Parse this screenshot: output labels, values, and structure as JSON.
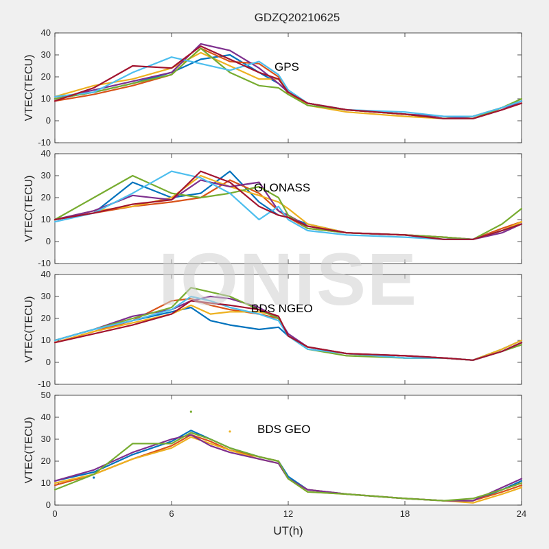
{
  "watermark": "IONISE",
  "chart_data": [
    {
      "type": "line",
      "title": "GDZQ20210625",
      "annotation": "GPS",
      "xlabel": "",
      "ylabel": "VTEC(TECU)",
      "xlim": [
        0,
        24
      ],
      "ylim": [
        -10,
        40
      ],
      "xticks": [
        0,
        6,
        12,
        18,
        24
      ],
      "xtick_labels": [
        "",
        "",
        "",
        "",
        ""
      ],
      "yticks": [
        -10,
        0,
        10,
        20,
        30,
        40
      ],
      "grid": false,
      "series": [
        {
          "color": "#0072BD",
          "x": [
            0,
            2,
            4,
            6,
            7.5,
            9,
            10.5,
            11.5,
            12,
            13,
            15,
            18,
            20,
            21.5,
            23,
            24
          ],
          "y": [
            10,
            13,
            17,
            22,
            28,
            30,
            22,
            17,
            13,
            8,
            5,
            3,
            1,
            2,
            6,
            9
          ]
        },
        {
          "color": "#D95319",
          "x": [
            0,
            2,
            4,
            6,
            7.5,
            9,
            10.5,
            11.5,
            12,
            13,
            15,
            18,
            20,
            21.5,
            23,
            24
          ],
          "y": [
            9,
            12,
            16,
            21,
            33,
            27,
            26,
            20,
            12,
            8,
            5,
            3,
            1,
            1,
            5,
            8
          ]
        },
        {
          "color": "#EDB120",
          "x": [
            0,
            2,
            4,
            6,
            7.5,
            9,
            10.5,
            11.5,
            12,
            13,
            15,
            18,
            20,
            21.5,
            23,
            24
          ],
          "y": [
            11,
            16,
            19,
            24,
            31,
            25,
            19,
            19,
            14,
            7,
            4,
            2,
            1,
            2,
            6,
            9
          ]
        },
        {
          "color": "#7E2F8E",
          "x": [
            0,
            2,
            4,
            6,
            7.5,
            9,
            10.5,
            11.5,
            12,
            13,
            15,
            18,
            20,
            21.5,
            23,
            24
          ],
          "y": [
            10,
            14,
            18,
            22,
            35,
            32,
            24,
            17,
            13,
            8,
            5,
            3,
            2,
            1,
            5,
            9
          ]
        },
        {
          "color": "#77AC30",
          "x": [
            0,
            2,
            4,
            6,
            7.5,
            9,
            10.5,
            11.5,
            12,
            13,
            15,
            18,
            20,
            21.5,
            23,
            24
          ],
          "y": [
            10,
            13,
            17,
            21,
            33,
            22,
            16,
            15,
            12,
            7,
            5,
            3,
            1,
            1,
            6,
            10
          ]
        },
        {
          "color": "#4DBEEE",
          "x": [
            0,
            2,
            4,
            6,
            7.5,
            9,
            10.5,
            11.5,
            12,
            13,
            15,
            18,
            20,
            21.5,
            23,
            24
          ],
          "y": [
            11,
            13,
            22,
            29,
            26,
            23,
            27,
            21,
            14,
            8,
            5,
            4,
            2,
            2,
            6,
            9
          ]
        },
        {
          "color": "#A2142F",
          "x": [
            0,
            2,
            4,
            6,
            7.5,
            9,
            10.5,
            11.5,
            12,
            13,
            15,
            18,
            20,
            21.5,
            23,
            24
          ],
          "y": [
            9,
            15,
            25,
            24,
            34,
            28,
            22,
            19,
            13,
            8,
            5,
            3,
            1,
            1,
            5,
            8
          ]
        }
      ]
    },
    {
      "type": "line",
      "annotation": "GLONASS",
      "xlabel": "",
      "ylabel": "VTEC(TECU)",
      "xlim": [
        0,
        24
      ],
      "ylim": [
        -10,
        40
      ],
      "xticks": [
        0,
        6,
        12,
        18,
        24
      ],
      "xtick_labels": [
        "",
        "",
        "",
        "",
        ""
      ],
      "yticks": [
        -10,
        0,
        10,
        20,
        30,
        40
      ],
      "grid": false,
      "series": [
        {
          "color": "#0072BD",
          "x": [
            0,
            2,
            4,
            6,
            7.5,
            9,
            10.5,
            11.5,
            12,
            13,
            15,
            18,
            20,
            21.5,
            23,
            24
          ],
          "y": [
            10,
            13,
            27,
            20,
            22,
            32,
            18,
            12,
            11,
            8,
            4,
            3,
            1,
            1,
            5,
            8
          ]
        },
        {
          "color": "#D95319",
          "x": [
            0,
            2,
            4,
            6,
            7.5,
            9,
            10.5,
            11.5,
            12,
            13,
            15,
            18,
            20,
            21.5,
            23,
            24
          ],
          "y": [
            10,
            13,
            16,
            18,
            20,
            28,
            22,
            14,
            11,
            6,
            4,
            3,
            2,
            1,
            6,
            9
          ]
        },
        {
          "color": "#EDB120",
          "x": [
            0,
            2,
            4,
            6,
            7.5,
            9,
            10.5,
            11.5,
            12,
            13,
            15,
            18,
            20,
            21.5,
            23,
            24
          ],
          "y": [
            10,
            14,
            16,
            20,
            30,
            25,
            21,
            18,
            15,
            8,
            4,
            3,
            2,
            1,
            5,
            9
          ]
        },
        {
          "color": "#7E2F8E",
          "x": [
            0,
            2,
            4,
            6,
            7.5,
            9,
            10.5,
            11.5,
            12,
            13,
            15,
            18,
            20,
            21.5,
            23,
            24
          ],
          "y": [
            10,
            14,
            21,
            19,
            28,
            25,
            27,
            14,
            12,
            7,
            4,
            3,
            2,
            1,
            4,
            8
          ]
        },
        {
          "color": "#77AC30",
          "x": [
            0,
            2,
            4,
            6,
            7.5,
            9,
            10.5,
            11.5,
            12,
            13,
            15,
            18,
            20,
            21.5,
            23,
            24
          ],
          "y": [
            10,
            20,
            30,
            22,
            20,
            22,
            25,
            20,
            12,
            6,
            4,
            3,
            2,
            1,
            8,
            15
          ]
        },
        {
          "color": "#4DBEEE",
          "x": [
            0,
            2,
            4,
            6,
            7.5,
            9,
            10.5,
            11.5,
            12,
            13,
            15,
            18,
            20,
            21.5,
            23,
            24
          ],
          "y": [
            9,
            13,
            22,
            32,
            29,
            22,
            10,
            16,
            10,
            5,
            3,
            2,
            1,
            1,
            5,
            8
          ]
        },
        {
          "color": "#A2142F",
          "x": [
            0,
            2,
            4,
            6,
            7.5,
            9,
            10.5,
            11.5,
            12,
            13,
            15,
            18,
            20,
            21.5,
            23,
            24
          ],
          "y": [
            10,
            13,
            17,
            19,
            32,
            27,
            16,
            12,
            11,
            7,
            4,
            3,
            1,
            1,
            5,
            8
          ]
        }
      ]
    },
    {
      "type": "line",
      "annotation": "BDS NGEO",
      "xlabel": "",
      "ylabel": "VTEC(TECU)",
      "xlim": [
        0,
        24
      ],
      "ylim": [
        -10,
        40
      ],
      "xticks": [
        0,
        6,
        12,
        18,
        24
      ],
      "xtick_labels": [
        "",
        "",
        "",
        "",
        ""
      ],
      "yticks": [
        -10,
        0,
        10,
        20,
        30,
        40
      ],
      "grid": false,
      "series": [
        {
          "color": "#0072BD",
          "x": [
            0,
            2,
            4,
            6,
            7,
            8,
            9,
            10.5,
            11.5,
            12,
            13,
            15,
            18,
            20,
            21.5,
            23,
            24
          ],
          "y": [
            10,
            15,
            19,
            23,
            25,
            19,
            17,
            15,
            16,
            12,
            7,
            4,
            2,
            2,
            1,
            6,
            10
          ]
        },
        {
          "color": "#D95319",
          "x": [
            0,
            2,
            4,
            6,
            7,
            8,
            9,
            10.5,
            11.5,
            12,
            13,
            15,
            18,
            20,
            21.5,
            23,
            24
          ],
          "y": [
            9,
            14,
            19,
            28,
            29,
            26,
            24,
            22,
            20,
            12,
            7,
            4,
            3,
            2,
            1,
            5,
            9
          ]
        },
        {
          "color": "#EDB120",
          "x": [
            0,
            2,
            4,
            6,
            7,
            8,
            9,
            10.5,
            11.5,
            12,
            13,
            15,
            18,
            20,
            21.5,
            23,
            24
          ],
          "y": [
            9,
            14,
            18,
            22,
            26,
            22,
            23,
            23,
            21,
            12,
            7,
            4,
            2,
            2,
            1,
            6,
            10
          ]
        },
        {
          "color": "#7E2F8E",
          "x": [
            0,
            2,
            4,
            6,
            7,
            8,
            9,
            10.5,
            11.5,
            12,
            13,
            15,
            18,
            20,
            21.5,
            23,
            24
          ],
          "y": [
            10,
            15,
            21,
            24,
            28,
            30,
            29,
            25,
            20,
            13,
            7,
            4,
            3,
            2,
            1,
            5,
            9
          ]
        },
        {
          "color": "#77AC30",
          "x": [
            0,
            2,
            4,
            6,
            7,
            8,
            9,
            10.5,
            11.5,
            12,
            13,
            15,
            18,
            20,
            21.5,
            23,
            24
          ],
          "y": [
            10,
            15,
            20,
            25,
            34,
            32,
            30,
            24,
            20,
            12,
            6,
            3,
            2,
            2,
            1,
            5,
            8
          ]
        },
        {
          "color": "#4DBEEE",
          "x": [
            0,
            2,
            4,
            6,
            7,
            8,
            9,
            10.5,
            11.5,
            12,
            13,
            15,
            18,
            20,
            21.5,
            23,
            24
          ],
          "y": [
            10,
            15,
            19,
            24,
            30,
            28,
            25,
            22,
            19,
            12,
            6,
            4,
            2,
            2,
            1,
            5,
            9
          ]
        },
        {
          "color": "#A2142F",
          "x": [
            0,
            2,
            4,
            6,
            7,
            8,
            9,
            10.5,
            11.5,
            12,
            13,
            15,
            18,
            20,
            21.5,
            23,
            24
          ],
          "y": [
            9,
            13,
            17,
            22,
            28,
            27,
            26,
            24,
            21,
            12,
            7,
            4,
            3,
            2,
            1,
            5,
            9
          ]
        }
      ]
    },
    {
      "type": "line",
      "annotation": "BDS GEO",
      "xlabel": "UT(h)",
      "ylabel": "VTEC(TECU)",
      "xlim": [
        0,
        24
      ],
      "ylim": [
        0,
        50
      ],
      "xticks": [
        0,
        6,
        12,
        18,
        24
      ],
      "xtick_labels": [
        "0",
        "6",
        "12",
        "18",
        "24"
      ],
      "yticks": [
        0,
        10,
        20,
        30,
        40,
        50
      ],
      "grid": false,
      "outliers": [
        {
          "color": "#77AC30",
          "x": 7.0,
          "y": 42.5
        },
        {
          "color": "#EDB120",
          "x": 9.0,
          "y": 33.5
        },
        {
          "color": "#0072BD",
          "x": 2.0,
          "y": 12.5
        }
      ],
      "series": [
        {
          "color": "#0072BD",
          "x": [
            0,
            2,
            4,
            6,
            7,
            8,
            9,
            10.5,
            11.5,
            12,
            13,
            15,
            18,
            20,
            21.5,
            23,
            24
          ],
          "y": [
            11,
            15,
            23,
            29,
            34,
            30,
            26,
            22,
            20,
            13,
            7,
            5,
            3,
            2,
            2,
            7,
            11
          ]
        },
        {
          "color": "#D95319",
          "x": [
            0,
            2,
            4,
            6,
            7,
            8,
            9,
            10.5,
            11.5,
            12,
            13,
            15,
            18,
            20,
            21.5,
            23,
            24
          ],
          "y": [
            9,
            14,
            21,
            27,
            32,
            29,
            25,
            22,
            20,
            12,
            7,
            5,
            3,
            2,
            2,
            6,
            9
          ]
        },
        {
          "color": "#EDB120",
          "x": [
            0,
            2,
            4,
            6,
            7,
            8,
            9,
            10.5,
            11.5,
            12,
            13,
            15,
            18,
            20,
            21.5,
            23,
            24
          ],
          "y": [
            10,
            14,
            21,
            26,
            31,
            28,
            25,
            21,
            19,
            12,
            6,
            5,
            3,
            2,
            1,
            5,
            8
          ]
        },
        {
          "color": "#7E2F8E",
          "x": [
            0,
            2,
            4,
            6,
            7,
            8,
            9,
            10.5,
            11.5,
            12,
            13,
            15,
            18,
            20,
            21.5,
            23,
            24
          ],
          "y": [
            11,
            16,
            24,
            30,
            32,
            27,
            24,
            21,
            19,
            12,
            7,
            5,
            3,
            2,
            2,
            8,
            12
          ]
        },
        {
          "color": "#77AC30",
          "x": [
            0,
            2,
            4,
            6,
            7,
            8,
            9,
            10.5,
            11.5,
            12,
            13,
            15,
            18,
            20,
            21.5,
            23,
            24
          ],
          "y": [
            7,
            14,
            28,
            28,
            33,
            30,
            26,
            22,
            20,
            12,
            6,
            5,
            3,
            2,
            3,
            7,
            10
          ]
        }
      ]
    }
  ]
}
